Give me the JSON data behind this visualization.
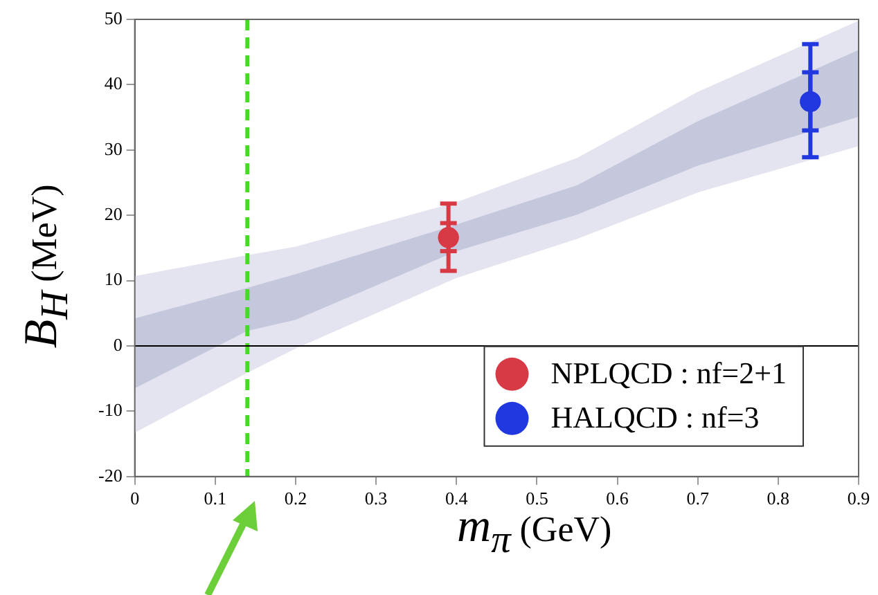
{
  "chart_data": {
    "type": "scatter",
    "xlabel": "m$_{π}$ (GeV)",
    "ylabel": "B$_{H}$ (MeV)",
    "xlim": [
      0,
      0.9
    ],
    "xticks": [
      0,
      0.1,
      0.2,
      0.3,
      0.4,
      0.5,
      0.6,
      0.7,
      0.8,
      0.9
    ],
    "ylim": [
      -20,
      50
    ],
    "yticks": [
      -20,
      -10,
      0,
      10,
      20,
      30,
      40,
      50
    ],
    "grid": false,
    "legend": "bottom right",
    "marker": "circle",
    "series": [
      {
        "type": "line",
        "color": "#e4e4f0",
        "x": [
          0,
          0.14,
          0.2,
          0.4,
          0.55,
          0.7,
          0.9
        ],
        "values": [
          null,
          null,
          null,
          null,
          null,
          null,
          null
        ],
        "lower": [
          -13.3,
          -4.1,
          -0.4,
          10.4,
          16.4,
          23.5,
          30.6
        ],
        "upper": [
          10.7,
          13.9,
          15.2,
          22.0,
          28.8,
          38.9,
          49.8
        ]
      },
      {
        "type": "line",
        "color": "#c5c7dc",
        "x": [
          0,
          0.14,
          0.2,
          0.4,
          0.55,
          0.7,
          0.9
        ],
        "values": [
          null,
          null,
          null,
          null,
          null,
          null,
          null
        ],
        "lower": [
          -6.5,
          2.3,
          4.0,
          14.5,
          20.1,
          27.6,
          35.1
        ],
        "upper": [
          4.2,
          8.9,
          11.0,
          18.6,
          24.6,
          34.4,
          45.3
        ]
      },
      {
        "name": "NPLQCD : nf=2+1",
        "color": "#d83a45",
        "x": [
          0.39
        ],
        "values": [
          16.6
        ],
        "errors": [
          [
            11.5,
            21.8
          ]
        ]
      },
      {
        "color": "#d83a45",
        "x": [
          0.39
        ],
        "values": [
          16.6
        ],
        "errors": [
          [
            14.5,
            18.8
          ]
        ]
      },
      {
        "name": "HALQCD : nf=3",
        "color": "#2138e0",
        "x": [
          0.84
        ],
        "values": [
          37.4
        ],
        "errors": [
          [
            28.9,
            46.2
          ]
        ]
      },
      {
        "color": "#2138e0",
        "x": [
          0.84
        ],
        "values": [
          37.4
        ],
        "errors": [
          [
            33.0,
            41.9
          ]
        ]
      }
    ],
    "ref_lines": [
      {
        "axis": "x",
        "value": 0.14,
        "color": "#44dd22",
        "line_style": "dashed"
      },
      {
        "axis": "y",
        "value": 0,
        "color": "#000000",
        "line_style": "solid"
      }
    ]
  }
}
